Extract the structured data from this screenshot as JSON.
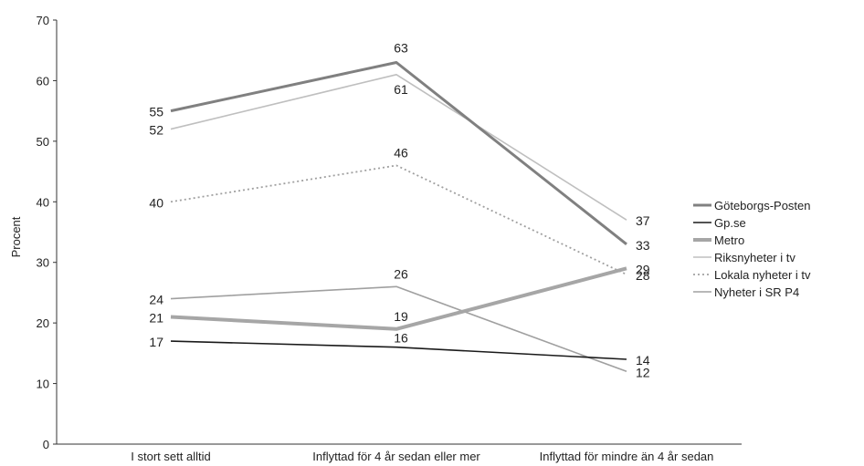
{
  "chart_data": {
    "type": "line",
    "title": "",
    "xlabel": "",
    "ylabel": "Procent",
    "ylim": [
      0,
      70
    ],
    "yticks": [
      0,
      10,
      20,
      30,
      40,
      50,
      60,
      70
    ],
    "grid": false,
    "legend_position": "right",
    "categories": [
      "I stort sett alltid",
      "Inflyttad för 4 år sedan eller mer",
      "Inflyttad för mindre än 4 år sedan"
    ],
    "series": [
      {
        "name": "Göteborgs-Posten",
        "values": [
          55,
          63,
          33
        ],
        "color": "#808080",
        "style": "solid-thick"
      },
      {
        "name": "Gp.se",
        "values": [
          17,
          16,
          14
        ],
        "color": "#1a1a1a",
        "style": "solid"
      },
      {
        "name": "Metro",
        "values": [
          21,
          19,
          29
        ],
        "color": "#a6a6a6",
        "style": "solid-thicker"
      },
      {
        "name": "Riksnyheter i tv",
        "values": [
          52,
          61,
          37
        ],
        "color": "#bfbfbf",
        "style": "solid"
      },
      {
        "name": "Lokala nyheter i tv",
        "values": [
          40,
          46,
          28
        ],
        "color": "#a0a0a0",
        "style": "dotted"
      },
      {
        "name": "Nyheter i SR P4",
        "values": [
          24,
          26,
          12
        ],
        "color": "#a0a0a0",
        "style": "solid"
      }
    ]
  }
}
